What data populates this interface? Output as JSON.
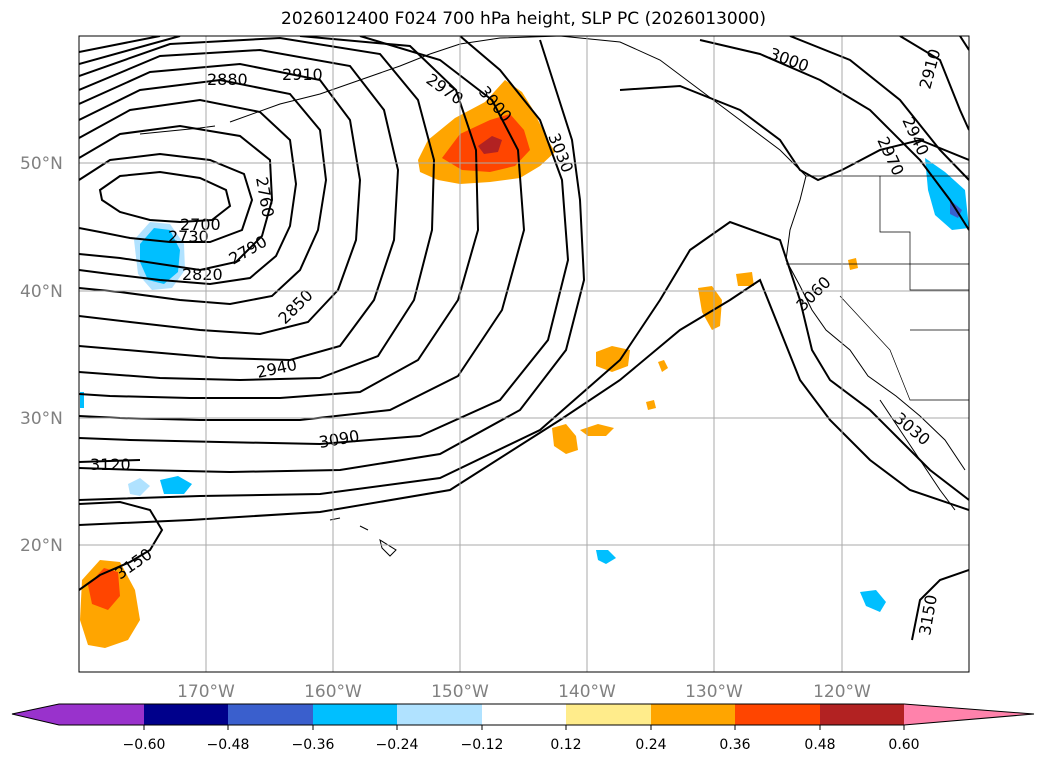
{
  "title": "2026012400 F024 700 hPa height, SLP PC (2026013000)",
  "map": {
    "lon_range": [
      -180,
      -110
    ],
    "lat_range": [
      10,
      60
    ],
    "lat_gridlines": [
      20,
      30,
      40,
      50
    ],
    "lon_gridlines": [
      -170,
      -160,
      -150,
      -140,
      -130,
      -120
    ],
    "lat_labels": [
      "20°N",
      "30°N",
      "40°N",
      "50°N"
    ],
    "lon_labels": [
      "170°W",
      "160°W",
      "150°W",
      "140°W",
      "130°W",
      "120°W"
    ],
    "contour_labels": [
      "2880",
      "2910",
      "2970",
      "3000",
      "3030",
      "3000",
      "2940",
      "2910",
      "2970",
      "2760",
      "2700",
      "2730",
      "2790",
      "2820",
      "2850",
      "2940",
      "3090",
      "3120",
      "3150",
      "3060",
      "3030",
      "3150"
    ]
  },
  "colorbar": {
    "colors": [
      "#9932cc",
      "#00008b",
      "#3a5fcd",
      "#00bfff",
      "#b0e2ff",
      "#ffffff",
      "#ffec8b",
      "#ffa500",
      "#ff4500",
      "#b22222",
      "#ff82ab"
    ],
    "ticks": [
      "−0.60",
      "−0.48",
      "−0.36",
      "−0.24",
      "−0.12",
      "0.12",
      "0.24",
      "0.36",
      "0.48",
      "0.60"
    ]
  }
}
